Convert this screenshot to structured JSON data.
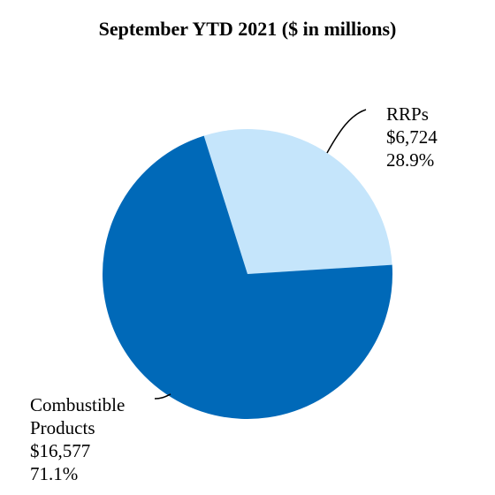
{
  "chart_data": {
    "type": "pie",
    "title": "September YTD 2021 ($ in millions)",
    "slices": [
      {
        "label_lines": [
          "RRPs"
        ],
        "amount_label": "$6,724",
        "percent_label": "28.9%",
        "value": 6724,
        "percent": 28.9,
        "color": "#c5e5fb"
      },
      {
        "label_lines": [
          "Combustible",
          "Products"
        ],
        "amount_label": "$16,577",
        "percent_label": "71.1%",
        "value": 16577,
        "percent": 71.1,
        "color": "#0069b8"
      }
    ],
    "legend": "none"
  }
}
